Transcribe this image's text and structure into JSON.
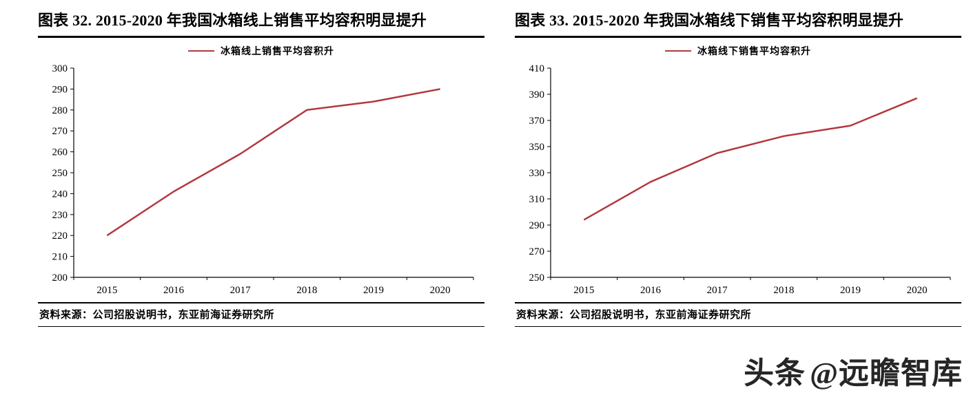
{
  "accent_color": "#b2383e",
  "chart_data": [
    {
      "type": "line",
      "title": "图表 32. 2015-2020 年我国冰箱线上销售平均容积明显提升",
      "legend": "冰箱线上销售平均容积升",
      "source": "资料来源：公司招股说明书，东亚前海证券研究所",
      "categories": [
        "2015",
        "2016",
        "2017",
        "2018",
        "2019",
        "2020"
      ],
      "values": [
        220,
        241,
        259,
        280,
        284,
        290
      ],
      "ylim": [
        200,
        300
      ],
      "ytick_step": 10,
      "xlabel": "",
      "ylabel": "",
      "grid": false,
      "legend_position": "top",
      "line_color": "#b2383e"
    },
    {
      "type": "line",
      "title": "图表 33. 2015-2020 年我国冰箱线下销售平均容积明显提升",
      "legend": "冰箱线下销售平均容积升",
      "source": "资料来源：公司招股说明书，东亚前海证券研究所",
      "categories": [
        "2015",
        "2016",
        "2017",
        "2018",
        "2019",
        "2020"
      ],
      "values": [
        294,
        323,
        345,
        358,
        366,
        387
      ],
      "ylim": [
        250,
        410
      ],
      "ytick_step": 20,
      "xlabel": "",
      "ylabel": "",
      "grid": false,
      "legend_position": "top",
      "line_color": "#b2383e"
    }
  ],
  "watermark": {
    "brand": "头条",
    "handle": "@远瞻智库"
  }
}
